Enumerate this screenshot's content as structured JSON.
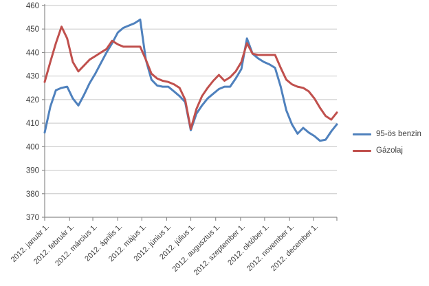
{
  "chart_data": {
    "type": "line",
    "title": "",
    "xlabel": "",
    "ylabel": "",
    "ylim": [
      370,
      460
    ],
    "y_ticks": [
      370,
      380,
      390,
      400,
      410,
      420,
      430,
      440,
      450,
      460
    ],
    "grid": "horizontal",
    "legend_position": "right",
    "x_tick_labels": [
      "2012. január 1.",
      "2012. február 1.",
      "2012. március 1.",
      "2012. április 1.",
      "2012. május 1.",
      "2012. június 1.",
      "2012. július 1.",
      "2012. augusztus 1.",
      "2012. szeptember 1.",
      "2012. október 1.",
      "2012. november 1.",
      "2012. december 1."
    ],
    "x_tick_positions": [
      0,
      4.43,
      8.57,
      13,
      17.29,
      21.71,
      26,
      30.43,
      34.86,
      39.14,
      43.57,
      47.86
    ],
    "x_unit": "week",
    "n_points": 53,
    "axis_color": "#8c8c8c",
    "grid_color": "#c6c6c6",
    "text_color": "#3e3e3e",
    "series": [
      {
        "name": "95-ös benzin",
        "color": "#4f81bd",
        "values": [
          406,
          417,
          424,
          425,
          425.5,
          420.5,
          417.5,
          422,
          427,
          431,
          435.5,
          440,
          444,
          448.5,
          450.5,
          451.5,
          452.5,
          454,
          437,
          428.5,
          426,
          425.5,
          425.5,
          423.5,
          421.5,
          419,
          407,
          414,
          417.5,
          420.5,
          422.5,
          424.5,
          425.5,
          425.5,
          429,
          433,
          446,
          439.5,
          437.5,
          436,
          435,
          433.5,
          425.5,
          415.5,
          409.5,
          405.5,
          408,
          406,
          404.5,
          402.5,
          403,
          406.5,
          409.5
        ]
      },
      {
        "name": "Gázolaj",
        "color": "#c0504d",
        "values": [
          427.5,
          436,
          444,
          451,
          446,
          436,
          432,
          434.5,
          437,
          438.5,
          440,
          441.5,
          445,
          443.5,
          442.5,
          442.5,
          442.5,
          442.5,
          437,
          431,
          429,
          428,
          427.5,
          426.5,
          425,
          420,
          407.5,
          416,
          421.5,
          425,
          428,
          430.5,
          428,
          429.5,
          432,
          436,
          444,
          439.5,
          439,
          439,
          439,
          439,
          433.5,
          428.5,
          426.5,
          425.5,
          425,
          423.5,
          420.5,
          416.5,
          413,
          411.5,
          414.5
        ]
      }
    ]
  },
  "legend": {
    "item1": "95-ös benzin",
    "item2": "Gázolaj"
  }
}
